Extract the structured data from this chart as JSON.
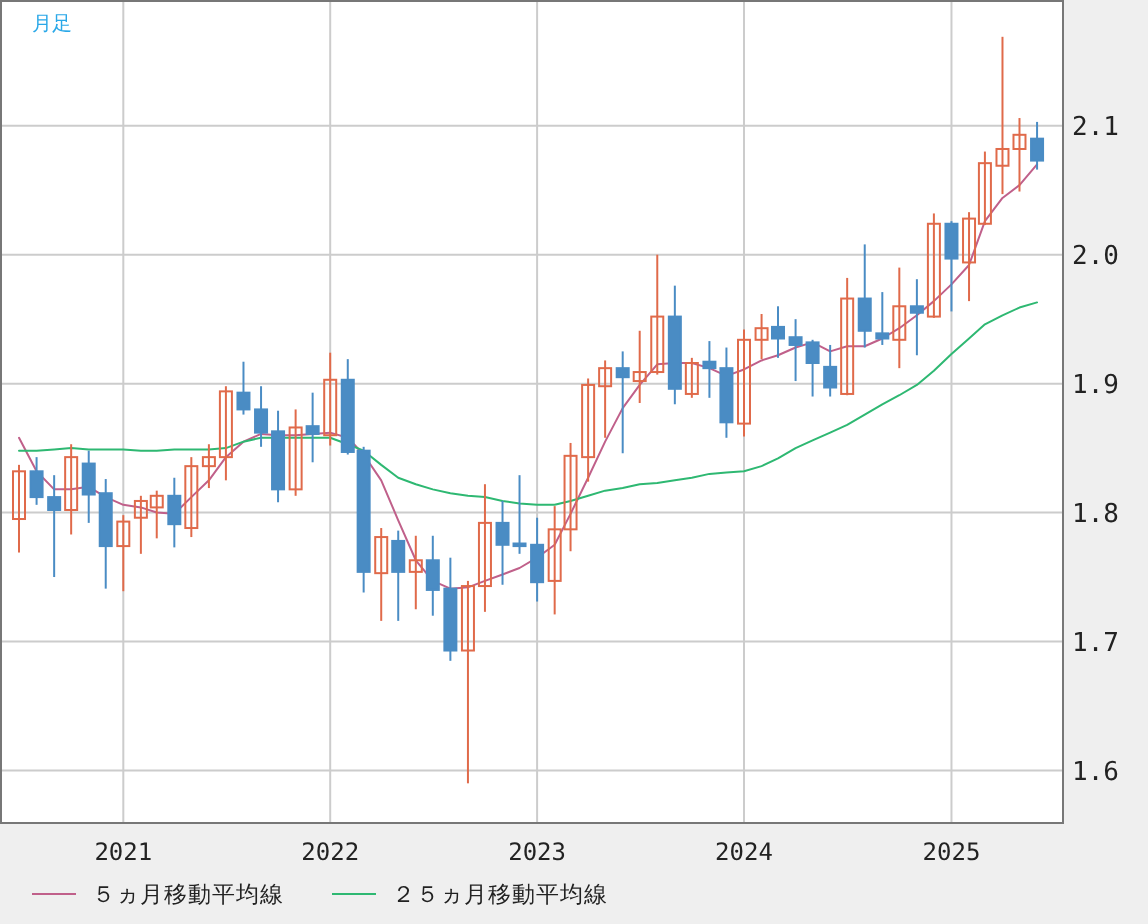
{
  "chart_data": {
    "type": "candlestick",
    "title": "月足",
    "x": [
      "2020-07",
      "2020-08",
      "2020-09",
      "2020-10",
      "2020-11",
      "2020-12",
      "2021-01",
      "2021-02",
      "2021-03",
      "2021-04",
      "2021-05",
      "2021-06",
      "2021-07",
      "2021-08",
      "2021-09",
      "2021-10",
      "2021-11",
      "2021-12",
      "2022-01",
      "2022-02",
      "2022-03",
      "2022-04",
      "2022-05",
      "2022-06",
      "2022-07",
      "2022-08",
      "2022-09",
      "2022-10",
      "2022-11",
      "2022-12",
      "2023-01",
      "2023-02",
      "2023-03",
      "2023-04",
      "2023-05",
      "2023-06",
      "2023-07",
      "2023-08",
      "2023-09",
      "2023-10",
      "2023-11",
      "2023-12",
      "2024-01",
      "2024-02",
      "2024-03",
      "2024-04",
      "2024-05",
      "2024-06",
      "2024-07",
      "2024-08",
      "2024-09",
      "2024-10",
      "2024-11",
      "2024-12",
      "2025-01",
      "2025-02",
      "2025-03",
      "2025-04",
      "2025-05",
      "2025-06"
    ],
    "ohlc": [
      [
        1.795,
        1.837,
        1.769,
        1.832
      ],
      [
        1.832,
        1.843,
        1.806,
        1.812
      ],
      [
        1.812,
        1.829,
        1.75,
        1.802
      ],
      [
        1.802,
        1.853,
        1.783,
        1.843
      ],
      [
        1.838,
        1.848,
        1.792,
        1.814
      ],
      [
        1.815,
        1.826,
        1.741,
        1.774
      ],
      [
        1.774,
        1.798,
        1.739,
        1.793
      ],
      [
        1.796,
        1.813,
        1.768,
        1.809
      ],
      [
        1.804,
        1.817,
        1.78,
        1.813
      ],
      [
        1.813,
        1.827,
        1.773,
        1.791
      ],
      [
        1.788,
        1.843,
        1.781,
        1.836
      ],
      [
        1.836,
        1.853,
        1.819,
        1.843
      ],
      [
        1.843,
        1.898,
        1.825,
        1.894
      ],
      [
        1.893,
        1.917,
        1.876,
        1.88
      ],
      [
        1.88,
        1.898,
        1.851,
        1.862
      ],
      [
        1.863,
        1.879,
        1.808,
        1.818
      ],
      [
        1.818,
        1.88,
        1.813,
        1.866
      ],
      [
        1.867,
        1.893,
        1.839,
        1.861
      ],
      [
        1.86,
        1.924,
        1.852,
        1.903
      ],
      [
        1.903,
        1.919,
        1.845,
        1.847
      ],
      [
        1.848,
        1.851,
        1.738,
        1.754
      ],
      [
        1.753,
        1.788,
        1.716,
        1.781
      ],
      [
        1.778,
        1.786,
        1.716,
        1.754
      ],
      [
        1.754,
        1.782,
        1.725,
        1.763
      ],
      [
        1.763,
        1.782,
        1.72,
        1.74
      ],
      [
        1.741,
        1.765,
        1.685,
        1.693
      ],
      [
        1.693,
        1.747,
        1.59,
        1.743
      ],
      [
        1.743,
        1.822,
        1.723,
        1.792
      ],
      [
        1.792,
        1.809,
        1.744,
        1.775
      ],
      [
        1.776,
        1.829,
        1.768,
        1.774
      ],
      [
        1.775,
        1.796,
        1.731,
        1.746
      ],
      [
        1.747,
        1.805,
        1.721,
        1.787
      ],
      [
        1.787,
        1.854,
        1.77,
        1.844
      ],
      [
        1.843,
        1.904,
        1.824,
        1.899
      ],
      [
        1.898,
        1.918,
        1.858,
        1.912
      ],
      [
        1.912,
        1.925,
        1.846,
        1.905
      ],
      [
        1.902,
        1.941,
        1.885,
        1.909
      ],
      [
        1.909,
        2.0,
        1.907,
        1.952
      ],
      [
        1.952,
        1.976,
        1.884,
        1.896
      ],
      [
        1.892,
        1.92,
        1.889,
        1.916
      ],
      [
        1.917,
        1.933,
        1.889,
        1.912
      ],
      [
        1.912,
        1.928,
        1.858,
        1.87
      ],
      [
        1.869,
        1.942,
        1.859,
        1.934
      ],
      [
        1.934,
        1.954,
        1.919,
        1.943
      ],
      [
        1.944,
        1.96,
        1.92,
        1.935
      ],
      [
        1.936,
        1.95,
        1.902,
        1.93
      ],
      [
        1.932,
        1.934,
        1.89,
        1.916
      ],
      [
        1.913,
        1.93,
        1.89,
        1.897
      ],
      [
        1.892,
        1.982,
        1.891,
        1.966
      ],
      [
        1.966,
        2.008,
        1.928,
        1.941
      ],
      [
        1.939,
        1.971,
        1.93,
        1.935
      ],
      [
        1.934,
        1.99,
        1.912,
        1.96
      ],
      [
        1.96,
        1.981,
        1.922,
        1.955
      ],
      [
        1.952,
        2.032,
        1.951,
        2.024
      ],
      [
        2.024,
        2.026,
        1.956,
        1.997
      ],
      [
        1.994,
        2.033,
        1.964,
        2.028
      ],
      [
        2.024,
        2.08,
        2.023,
        2.071
      ],
      [
        2.069,
        2.169,
        2.047,
        2.082
      ],
      [
        2.082,
        2.106,
        2.049,
        2.093
      ],
      [
        2.09,
        2.103,
        2.066,
        2.073
      ]
    ],
    "colors": [
      "#e06a4a",
      "#4a8cc4",
      "#4a8cc4",
      "#e06a4a",
      "#4a8cc4",
      "#4a8cc4",
      "#e06a4a",
      "#e06a4a",
      "#e06a4a",
      "#4a8cc4",
      "#e06a4a",
      "#e06a4a",
      "#e06a4a",
      "#4a8cc4",
      "#4a8cc4",
      "#4a8cc4",
      "#e06a4a",
      "#4a8cc4",
      "#e06a4a",
      "#4a8cc4",
      "#4a8cc4",
      "#e06a4a",
      "#4a8cc4",
      "#e06a4a",
      "#4a8cc4",
      "#4a8cc4",
      "#e06a4a",
      "#e06a4a",
      "#4a8cc4",
      "#4a8cc4",
      "#4a8cc4",
      "#e06a4a",
      "#e06a4a",
      "#e06a4a",
      "#e06a4a",
      "#4a8cc4",
      "#e06a4a",
      "#e06a4a",
      "#4a8cc4",
      "#e06a4a",
      "#4a8cc4",
      "#4a8cc4",
      "#e06a4a",
      "#e06a4a",
      "#4a8cc4",
      "#4a8cc4",
      "#4a8cc4",
      "#4a8cc4",
      "#e06a4a",
      "#4a8cc4",
      "#4a8cc4",
      "#e06a4a",
      "#4a8cc4",
      "#e06a4a",
      "#4a8cc4",
      "#e06a4a",
      "#e06a4a",
      "#e06a4a",
      "#e06a4a",
      "#4a8cc4"
    ],
    "series": [
      {
        "type": "line",
        "name": "５ヵ月移動平均線",
        "color": "#c0608a",
        "values": [
          1.858,
          1.832,
          1.818,
          1.818,
          1.82,
          1.812,
          1.806,
          1.804,
          1.8,
          1.799,
          1.812,
          1.825,
          1.843,
          1.855,
          1.861,
          1.86,
          1.86,
          1.861,
          1.862,
          1.858,
          1.845,
          1.825,
          1.794,
          1.763,
          1.747,
          1.741,
          1.742,
          1.747,
          1.752,
          1.757,
          1.765,
          1.775,
          1.799,
          1.827,
          1.855,
          1.881,
          1.899,
          1.915,
          1.916,
          1.916,
          1.912,
          1.906,
          1.911,
          1.918,
          1.922,
          1.928,
          1.932,
          1.925,
          1.929,
          1.929,
          1.935,
          1.943,
          1.953,
          1.964,
          1.977,
          1.992,
          2.026,
          2.044,
          2.054,
          2.07
        ]
      },
      {
        "type": "line",
        "name": "２５ヵ月移動平均線",
        "color": "#2eb872",
        "values": [
          1.848,
          1.848,
          1.849,
          1.85,
          1.849,
          1.849,
          1.849,
          1.848,
          1.848,
          1.849,
          1.849,
          1.849,
          1.85,
          1.855,
          1.858,
          1.858,
          1.858,
          1.858,
          1.858,
          1.853,
          1.848,
          1.837,
          1.827,
          1.822,
          1.818,
          1.815,
          1.813,
          1.812,
          1.809,
          1.807,
          1.806,
          1.806,
          1.809,
          1.813,
          1.817,
          1.819,
          1.822,
          1.823,
          1.825,
          1.827,
          1.83,
          1.831,
          1.832,
          1.836,
          1.842,
          1.85,
          1.856,
          1.862,
          1.868,
          1.876,
          1.884,
          1.891,
          1.899,
          1.91,
          1.923,
          1.935,
          1.946,
          1.953,
          1.959,
          1.963
        ]
      }
    ],
    "xlim": [
      "2020-06-01",
      "2025-07-15"
    ],
    "xticks": [
      {
        "value": "2021-01",
        "label": "2021"
      },
      {
        "value": "2022-01",
        "label": "2022"
      },
      {
        "value": "2023-01",
        "label": "2023"
      },
      {
        "value": "2024-01",
        "label": "2024"
      },
      {
        "value": "2025-01",
        "label": "2025"
      }
    ],
    "ylim": [
      1.56,
      2.196
    ],
    "yticks": [
      1.6,
      1.7,
      1.8,
      1.9,
      {
        "value": 2,
        "label": "2.0"
      },
      2.1
    ],
    "grid": true,
    "legend": "bottom"
  }
}
